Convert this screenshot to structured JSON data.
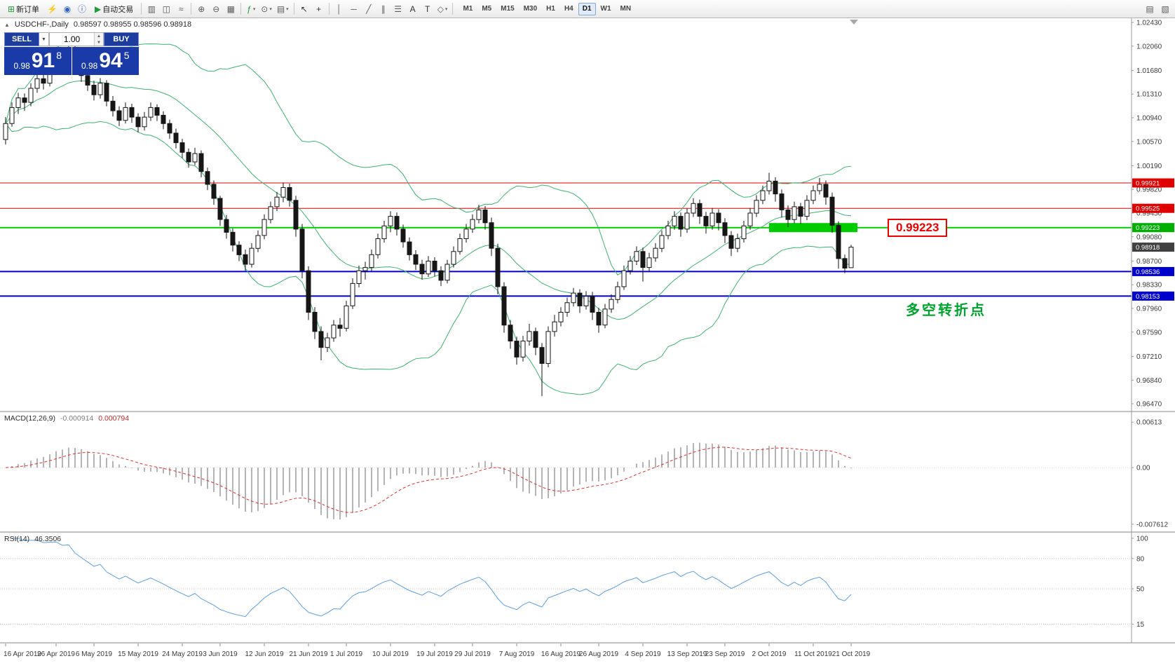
{
  "toolbar": {
    "new_order_label": "新订单",
    "autotrading_label": "自动交易",
    "icons": {
      "new_order": "⊞",
      "community": "⚡",
      "market": "◉",
      "info": "ⓘ",
      "autotrading_play": "▶",
      "bar_chart": "▥",
      "candle_chart": "◫",
      "line_chart": "≈",
      "zoom_in": "⊕",
      "zoom_out": "⊖",
      "arrange": "▦",
      "indicators": "ƒ",
      "periods": "⊙",
      "templates": "▤",
      "cursor": "↖",
      "crosshair": "+",
      "vline": "│",
      "hline": "─",
      "trendline": "╱",
      "channel": "∥",
      "fibonacci": "☰",
      "text": "A",
      "label": "T",
      "shapes": "◇",
      "caret": "▾",
      "data_window": "▤",
      "tester": "▧"
    },
    "timeframes": [
      "M1",
      "M5",
      "M15",
      "M30",
      "H1",
      "H4",
      "D1",
      "W1",
      "MN"
    ],
    "active_timeframe": "D1"
  },
  "header": {
    "arrow": "▲",
    "symbol": "USDCHF-,Daily",
    "ohlc": "0.98597 0.98955 0.98596 0.98918"
  },
  "trade_panel": {
    "sell_label": "SELL",
    "buy_label": "BUY",
    "volume": "1.00",
    "caret_down": "▼",
    "caret_up": "▲",
    "bid": {
      "small": "0.98",
      "big": "91",
      "sup": "8"
    },
    "ask": {
      "small": "0.98",
      "big": "94",
      "sup": "5"
    }
  },
  "indicator_labels": {
    "macd_name": "MACD(12,26,9)",
    "macd_main": "-0.000914",
    "macd_signal": "0.000794",
    "rsi_name": "RSI(14)",
    "rsi_value": "46.3506"
  },
  "annotations": {
    "price_callout": "0.99223",
    "note": "多空转折点"
  },
  "chart_data": {
    "type": "candlestick",
    "symbol": "USDCHF-,Daily",
    "colors": {
      "bollinger": "#3cb371",
      "macd_hist": "#b4b4b4",
      "macd_signal": "#e03030",
      "rsi_line": "#5aa0e0",
      "bull": "#ffffff",
      "bear": "#161616",
      "outline": "#161616",
      "level_red": "#dd0000",
      "level_green": "#00cc00",
      "level_blue": "#0000cc"
    },
    "price_axis_labels": [
      "1.02430",
      "1.02060",
      "1.01680",
      "1.01310",
      "1.00940",
      "1.00570",
      "1.00190",
      "0.99820",
      "0.99450",
      "0.99080",
      "0.98700",
      "0.98330",
      "0.97960",
      "0.97590",
      "0.97210",
      "0.96840",
      "0.96470"
    ],
    "hlines": [
      {
        "price": 0.99921,
        "color": "#dd0000",
        "width": 1
      },
      {
        "price": 0.99525,
        "color": "#dd0000",
        "width": 1
      },
      {
        "price": 0.99223,
        "color": "#00cc00",
        "width": 2
      },
      {
        "price": 0.98536,
        "color": "#0000cc",
        "width": 2
      },
      {
        "price": 0.98153,
        "color": "#0000cc",
        "width": 2
      }
    ],
    "price_tags": [
      {
        "text": "0.99921",
        "price": 0.99921,
        "bg": "#e00000"
      },
      {
        "text": "0.99525",
        "price": 0.99525,
        "bg": "#e00000"
      },
      {
        "text": "0.99223",
        "price": 0.99223,
        "bg": "#00b000"
      },
      {
        "text": "0.98918",
        "price": 0.98918,
        "bg": "#404040"
      },
      {
        "text": "0.98536",
        "price": 0.98536,
        "bg": "#0000cc"
      },
      {
        "text": "0.98153",
        "price": 0.98153,
        "bg": "#0000cc"
      }
    ],
    "highlight_rect": {
      "price": 0.99223,
      "from_bar": 121,
      "to_bar": 135,
      "color": "#00cc00"
    },
    "bollinger": {
      "period": 20,
      "deviation": 2
    },
    "macd": {
      "label": "MACD(12,26,9)",
      "value_main": "-0.000914",
      "value_signal": "0.000794",
      "axis_labels": [
        {
          "text": "0.00613",
          "value": 0.00613
        },
        {
          "text": "0.00",
          "value": 0
        },
        {
          "text": "-0.007612",
          "value": -0.007612
        }
      ]
    },
    "rsi": {
      "label": "RSI(14)",
      "value": "46.3506",
      "levels": [
        80,
        50,
        15
      ],
      "axis_labels": [
        {
          "text": "100",
          "value": 100
        },
        {
          "text": "80",
          "value": 80
        },
        {
          "text": "50",
          "value": 50
        },
        {
          "text": "15",
          "value": 15
        }
      ]
    },
    "date_labels": [
      [
        "16 Apr 2019",
        0
      ],
      [
        "26 Apr 2019",
        8
      ],
      [
        "6 May 2019",
        14
      ],
      [
        "15 May 2019",
        21
      ],
      [
        "24 May 2019",
        28
      ],
      [
        "3 Jun 2019",
        34
      ],
      [
        "12 Jun 2019",
        41
      ],
      [
        "21 Jun 2019",
        48
      ],
      [
        "1 Jul 2019",
        54
      ],
      [
        "10 Jul 2019",
        61
      ],
      [
        "19 Jul 2019",
        68
      ],
      [
        "29 Jul 2019",
        74
      ],
      [
        "7 Aug 2019",
        81
      ],
      [
        "16 Aug 2019",
        88
      ],
      [
        "26 Aug 2019",
        94
      ],
      [
        "4 Sep 2019",
        101
      ],
      [
        "13 Sep 2019",
        108
      ],
      [
        "23 Sep 2019",
        114
      ],
      [
        "2 Oct 2019",
        121
      ],
      [
        "11 Oct 2019",
        128
      ],
      [
        "21 Oct 2019",
        134
      ]
    ],
    "candles": [
      [
        1.006,
        1.0095,
        1.0052,
        1.0085
      ],
      [
        1.0085,
        1.0118,
        1.008,
        1.011
      ],
      [
        1.011,
        1.0133,
        1.01,
        1.0125
      ],
      [
        1.0125,
        1.0132,
        1.0105,
        1.0118
      ],
      [
        1.0118,
        1.0148,
        1.0112,
        1.014
      ],
      [
        1.014,
        1.0163,
        1.0133,
        1.0155
      ],
      [
        1.0155,
        1.0162,
        1.0138,
        1.0148
      ],
      [
        1.0148,
        1.0183,
        1.0143,
        1.0175
      ],
      [
        1.0175,
        1.0204,
        1.0168,
        1.0195
      ],
      [
        1.0195,
        1.0202,
        1.0173,
        1.0185
      ],
      [
        1.0185,
        1.0225,
        1.018,
        1.02
      ],
      [
        1.02,
        1.021,
        1.0165,
        1.0175
      ],
      [
        1.0175,
        1.0183,
        1.015,
        1.016
      ],
      [
        1.016,
        1.017,
        1.0136,
        1.0145
      ],
      [
        1.0145,
        1.0152,
        1.0121,
        1.013
      ],
      [
        1.013,
        1.0156,
        1.0124,
        1.0148
      ],
      [
        1.0148,
        1.0153,
        1.0112,
        1.012
      ],
      [
        1.012,
        1.0128,
        1.0096,
        1.0105
      ],
      [
        1.0105,
        1.0112,
        1.0081,
        1.009
      ],
      [
        1.009,
        1.0118,
        1.0085,
        1.011
      ],
      [
        1.011,
        1.0116,
        1.0086,
        1.0095
      ],
      [
        1.0095,
        1.0101,
        1.0071,
        1.008
      ],
      [
        1.008,
        1.0103,
        1.0074,
        1.0095
      ],
      [
        1.0095,
        1.0118,
        1.0089,
        1.011
      ],
      [
        1.011,
        1.0115,
        1.0089,
        1.0098
      ],
      [
        1.0098,
        1.0104,
        1.0076,
        1.0085
      ],
      [
        1.0085,
        1.0091,
        1.0061,
        1.007
      ],
      [
        1.007,
        1.0077,
        1.0046,
        1.0055
      ],
      [
        1.0055,
        1.0061,
        1.0031,
        1.004
      ],
      [
        1.004,
        1.0046,
        1.0016,
        1.0025
      ],
      [
        1.0025,
        1.0047,
        1.002,
        1.0038
      ],
      [
        1.0038,
        1.0043,
        1.0001,
        1.001
      ],
      [
        1.001,
        1.0016,
        0.9981,
        0.999
      ],
      [
        0.999,
        0.9996,
        0.9958,
        0.9968
      ],
      [
        0.9968,
        0.9972,
        0.9925,
        0.9935
      ],
      [
        0.9935,
        0.9942,
        0.9905,
        0.9915
      ],
      [
        0.9915,
        0.9921,
        0.9885,
        0.9895
      ],
      [
        0.9895,
        0.9901,
        0.987,
        0.988
      ],
      [
        0.988,
        0.9888,
        0.9855,
        0.9865
      ],
      [
        0.9865,
        0.9898,
        0.986,
        0.989
      ],
      [
        0.989,
        0.9918,
        0.9884,
        0.991
      ],
      [
        0.991,
        0.9943,
        0.9904,
        0.9935
      ],
      [
        0.9935,
        0.9963,
        0.9929,
        0.9955
      ],
      [
        0.9955,
        0.9978,
        0.9948,
        0.997
      ],
      [
        0.997,
        0.9993,
        0.9962,
        0.9985
      ],
      [
        0.9985,
        0.9991,
        0.9955,
        0.9965
      ],
      [
        0.9965,
        0.9972,
        0.9908,
        0.992
      ],
      [
        0.992,
        0.9928,
        0.9843,
        0.9855
      ],
      [
        0.9855,
        0.9862,
        0.9778,
        0.979
      ],
      [
        0.979,
        0.9798,
        0.9748,
        0.976
      ],
      [
        0.976,
        0.9768,
        0.9715,
        0.9735
      ],
      [
        0.9735,
        0.9758,
        0.9728,
        0.975
      ],
      [
        0.975,
        0.9778,
        0.9744,
        0.977
      ],
      [
        0.977,
        0.9781,
        0.9752,
        0.9765
      ],
      [
        0.9765,
        0.9808,
        0.976,
        0.98
      ],
      [
        0.98,
        0.9843,
        0.9795,
        0.9835
      ],
      [
        0.9835,
        0.9863,
        0.9829,
        0.9855
      ],
      [
        0.9855,
        0.9869,
        0.9841,
        0.986
      ],
      [
        0.986,
        0.9888,
        0.9854,
        0.988
      ],
      [
        0.988,
        0.9913,
        0.9874,
        0.9905
      ],
      [
        0.9905,
        0.9933,
        0.9899,
        0.9925
      ],
      [
        0.9925,
        0.9948,
        0.9915,
        0.994
      ],
      [
        0.994,
        0.9946,
        0.991,
        0.992
      ],
      [
        0.992,
        0.9927,
        0.9891,
        0.99
      ],
      [
        0.99,
        0.9907,
        0.9871,
        0.988
      ],
      [
        0.988,
        0.9887,
        0.9856,
        0.9865
      ],
      [
        0.9865,
        0.9872,
        0.9841,
        0.985
      ],
      [
        0.985,
        0.9878,
        0.9845,
        0.987
      ],
      [
        0.987,
        0.9876,
        0.9846,
        0.9855
      ],
      [
        0.9855,
        0.9862,
        0.9831,
        0.984
      ],
      [
        0.984,
        0.9872,
        0.9835,
        0.9865
      ],
      [
        0.9865,
        0.9893,
        0.986,
        0.9885
      ],
      [
        0.9885,
        0.9913,
        0.988,
        0.9905
      ],
      [
        0.9905,
        0.9928,
        0.9899,
        0.992
      ],
      [
        0.992,
        0.9943,
        0.9914,
        0.9935
      ],
      [
        0.9935,
        0.9958,
        0.9929,
        0.995
      ],
      [
        0.995,
        0.9956,
        0.9919,
        0.993
      ],
      [
        0.993,
        0.9938,
        0.9878,
        0.989
      ],
      [
        0.989,
        0.9897,
        0.9818,
        0.983
      ],
      [
        0.983,
        0.9837,
        0.9758,
        0.977
      ],
      [
        0.977,
        0.9778,
        0.9733,
        0.9745
      ],
      [
        0.9745,
        0.9752,
        0.9708,
        0.972
      ],
      [
        0.972,
        0.9753,
        0.9713,
        0.9745
      ],
      [
        0.9745,
        0.9772,
        0.9738,
        0.976
      ],
      [
        0.976,
        0.9766,
        0.9723,
        0.9735
      ],
      [
        0.9735,
        0.9742,
        0.9659,
        0.971
      ],
      [
        0.971,
        0.9768,
        0.9704,
        0.976
      ],
      [
        0.976,
        0.9786,
        0.9752,
        0.9775
      ],
      [
        0.9775,
        0.9798,
        0.9768,
        0.979
      ],
      [
        0.979,
        0.9813,
        0.9783,
        0.9805
      ],
      [
        0.9805,
        0.9828,
        0.9799,
        0.982
      ],
      [
        0.982,
        0.9826,
        0.9789,
        0.98
      ],
      [
        0.98,
        0.9823,
        0.9794,
        0.9815
      ],
      [
        0.9815,
        0.9822,
        0.9778,
        0.979
      ],
      [
        0.979,
        0.9797,
        0.9758,
        0.977
      ],
      [
        0.977,
        0.9803,
        0.9765,
        0.9795
      ],
      [
        0.9795,
        0.9818,
        0.9789,
        0.981
      ],
      [
        0.981,
        0.9838,
        0.9804,
        0.983
      ],
      [
        0.983,
        0.9863,
        0.9825,
        0.9855
      ],
      [
        0.9855,
        0.9878,
        0.9849,
        0.987
      ],
      [
        0.987,
        0.9893,
        0.9864,
        0.9885
      ],
      [
        0.9885,
        0.9891,
        0.9838,
        0.986
      ],
      [
        0.986,
        0.9883,
        0.9854,
        0.9875
      ],
      [
        0.9875,
        0.9898,
        0.9869,
        0.989
      ],
      [
        0.989,
        0.9918,
        0.9884,
        0.991
      ],
      [
        0.991,
        0.9933,
        0.9904,
        0.9925
      ],
      [
        0.9925,
        0.9948,
        0.9919,
        0.994
      ],
      [
        0.994,
        0.9946,
        0.9908,
        0.992
      ],
      [
        0.992,
        0.9952,
        0.9914,
        0.9945
      ],
      [
        0.9945,
        0.9968,
        0.9939,
        0.996
      ],
      [
        0.996,
        0.9966,
        0.9928,
        0.994
      ],
      [
        0.994,
        0.9947,
        0.9913,
        0.9925
      ],
      [
        0.9925,
        0.9953,
        0.9919,
        0.9945
      ],
      [
        0.9945,
        0.9951,
        0.9918,
        0.993
      ],
      [
        0.993,
        0.9937,
        0.9898,
        0.991
      ],
      [
        0.991,
        0.9917,
        0.9878,
        0.989
      ],
      [
        0.989,
        0.9913,
        0.9884,
        0.9905
      ],
      [
        0.9905,
        0.9933,
        0.9899,
        0.9925
      ],
      [
        0.9925,
        0.9953,
        0.9919,
        0.9945
      ],
      [
        0.9945,
        0.9973,
        0.9939,
        0.9965
      ],
      [
        0.9965,
        0.9988,
        0.9959,
        0.998
      ],
      [
        0.998,
        1.0008,
        0.9974,
        0.9995
      ],
      [
        0.9995,
        1.0001,
        0.9963,
        0.9975
      ],
      [
        0.9975,
        0.9982,
        0.9938,
        0.995
      ],
      [
        0.995,
        0.9957,
        0.9923,
        0.9935
      ],
      [
        0.9935,
        0.9963,
        0.9929,
        0.9955
      ],
      [
        0.9955,
        0.9961,
        0.9928,
        0.994
      ],
      [
        0.994,
        0.9973,
        0.9934,
        0.9965
      ],
      [
        0.9965,
        0.9988,
        0.9959,
        0.998
      ],
      [
        0.998,
        1.0,
        0.9974,
        0.999
      ],
      [
        0.999,
        0.9996,
        0.9958,
        0.997
      ],
      [
        0.997,
        0.9977,
        0.9914,
        0.9926
      ],
      [
        0.9926,
        0.9932,
        0.9858,
        0.9874
      ],
      [
        0.9874,
        0.988,
        0.9851,
        0.9859
      ],
      [
        0.98597,
        0.98955,
        0.98596,
        0.98918
      ]
    ]
  }
}
